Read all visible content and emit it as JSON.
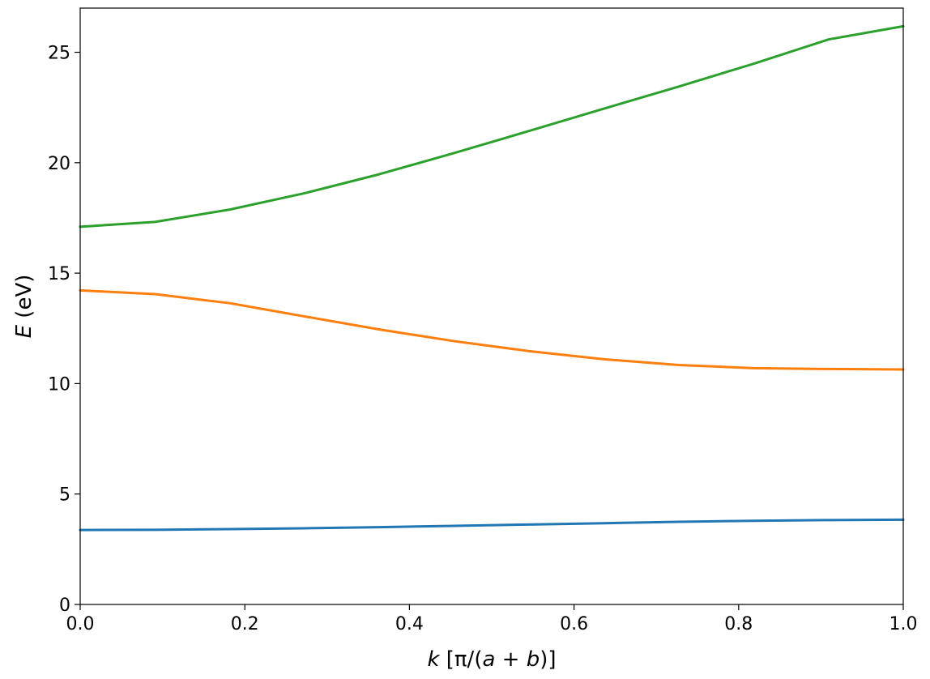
{
  "chart_data": {
    "type": "line",
    "title": "",
    "xlabel_parts": {
      "var": "k",
      "unit_open": " [π/(",
      "a": "a",
      "plus": " + ",
      "b": "b",
      "unit_close": ")]"
    },
    "ylabel_parts": {
      "var": "E",
      "unit": " (eV)"
    },
    "xlim": [
      0.0,
      1.0
    ],
    "ylim": [
      0,
      27
    ],
    "xticks": [
      0.0,
      0.2,
      0.4,
      0.6,
      0.8,
      1.0
    ],
    "xtick_labels": [
      "0.0",
      "0.2",
      "0.4",
      "0.6",
      "0.8",
      "1.0"
    ],
    "yticks": [
      0,
      5,
      10,
      15,
      20,
      25
    ],
    "ytick_labels": [
      "0",
      "5",
      "10",
      "15",
      "20",
      "25"
    ],
    "grid": false,
    "legend": "none",
    "x": [
      0.0,
      0.0909,
      0.1818,
      0.2727,
      0.3636,
      0.4545,
      0.5455,
      0.6364,
      0.7273,
      0.8182,
      0.9091,
      1.0
    ],
    "series": [
      {
        "color": "#1f77b4",
        "values": [
          3.37,
          3.38,
          3.41,
          3.45,
          3.5,
          3.56,
          3.62,
          3.68,
          3.74,
          3.79,
          3.82,
          3.84
        ]
      },
      {
        "color": "#ff7f0e",
        "values": [
          14.22,
          14.05,
          13.64,
          13.04,
          12.45,
          11.92,
          11.47,
          11.1,
          10.84,
          10.7,
          10.66,
          10.64
        ]
      },
      {
        "color": "#2ca02c",
        "values": [
          17.1,
          17.32,
          17.88,
          18.62,
          19.48,
          20.44,
          21.44,
          22.45,
          23.45,
          24.48,
          25.58,
          26.18
        ]
      }
    ]
  }
}
